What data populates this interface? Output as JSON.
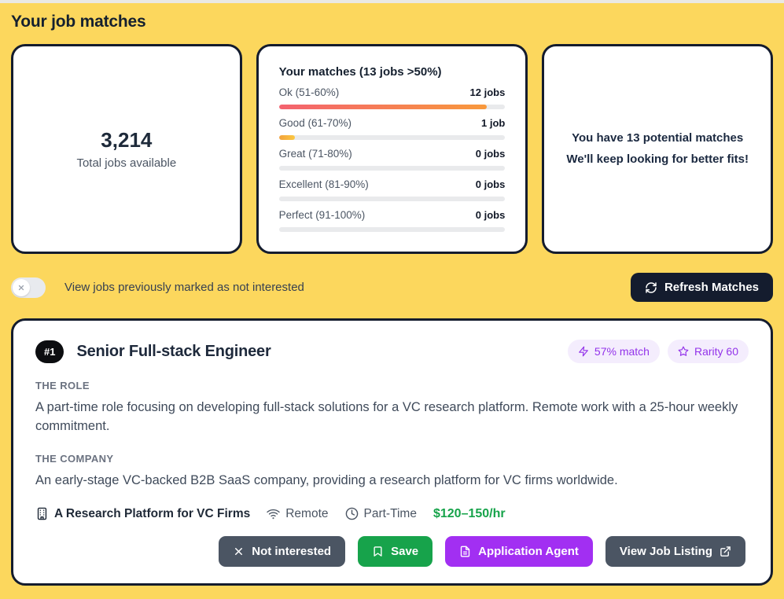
{
  "page": {
    "title": "Your job matches"
  },
  "colors": {
    "background": "#fcd75d",
    "card_border": "#141c2e",
    "badge_bg": "#f4edfd",
    "badge_text": "#9333ea",
    "salary_green": "#16a34a",
    "save_green": "#17a34b",
    "agent_purple": "#a22ff2",
    "neutral_button": "#4b5563",
    "refresh_bg": "#141c2e"
  },
  "stats": {
    "total_jobs": {
      "value": "3,214",
      "label": "Total jobs available"
    },
    "matches": {
      "title": "Your matches (13 jobs >50%)",
      "rows": [
        {
          "label": "Ok (51-60%)",
          "count": "12 jobs",
          "fill_pct": 92,
          "gradient_from": "#f4626f",
          "gradient_to": "#f8993c"
        },
        {
          "label": "Good (61-70%)",
          "count": "1 job",
          "fill_pct": 7,
          "gradient_from": "#f2a23c",
          "gradient_to": "#fbc842"
        },
        {
          "label": "Great (71-80%)",
          "count": "0 jobs",
          "fill_pct": 0,
          "gradient_from": "#e9eaec",
          "gradient_to": "#e9eaec"
        },
        {
          "label": "Excellent (81-90%)",
          "count": "0 jobs",
          "fill_pct": 0,
          "gradient_from": "#e9eaec",
          "gradient_to": "#e9eaec"
        },
        {
          "label": "Perfect (91-100%)",
          "count": "0 jobs",
          "fill_pct": 0,
          "gradient_from": "#e9eaec",
          "gradient_to": "#e9eaec"
        }
      ]
    },
    "summary": {
      "line1": "You have 13 potential matches",
      "line2": "We'll keep looking for better fits!"
    }
  },
  "controls": {
    "toggle_label": "View jobs previously marked as not interested",
    "toggle_state": "off",
    "refresh_button": "Refresh Matches"
  },
  "job": {
    "rank": "#1",
    "title": "Senior Full-stack Engineer",
    "match_badge": "57% match",
    "rarity_badge": "Rarity 60",
    "role_label": "THE ROLE",
    "role_text": "A part-time role focusing on developing full-stack solutions for a VC research platform. Remote work with a 25-hour weekly commitment.",
    "company_label": "THE COMPANY",
    "company_text": "An early-stage VC-backed B2B SaaS company, providing a research platform for VC firms worldwide.",
    "meta": {
      "company": "A Research Platform for VC Firms",
      "location": "Remote",
      "employment_type": "Part-Time",
      "salary": "$120–150/hr"
    },
    "actions": {
      "not_interested": "Not interested",
      "save": "Save",
      "application_agent": "Application Agent",
      "view_listing": "View Job Listing"
    }
  }
}
